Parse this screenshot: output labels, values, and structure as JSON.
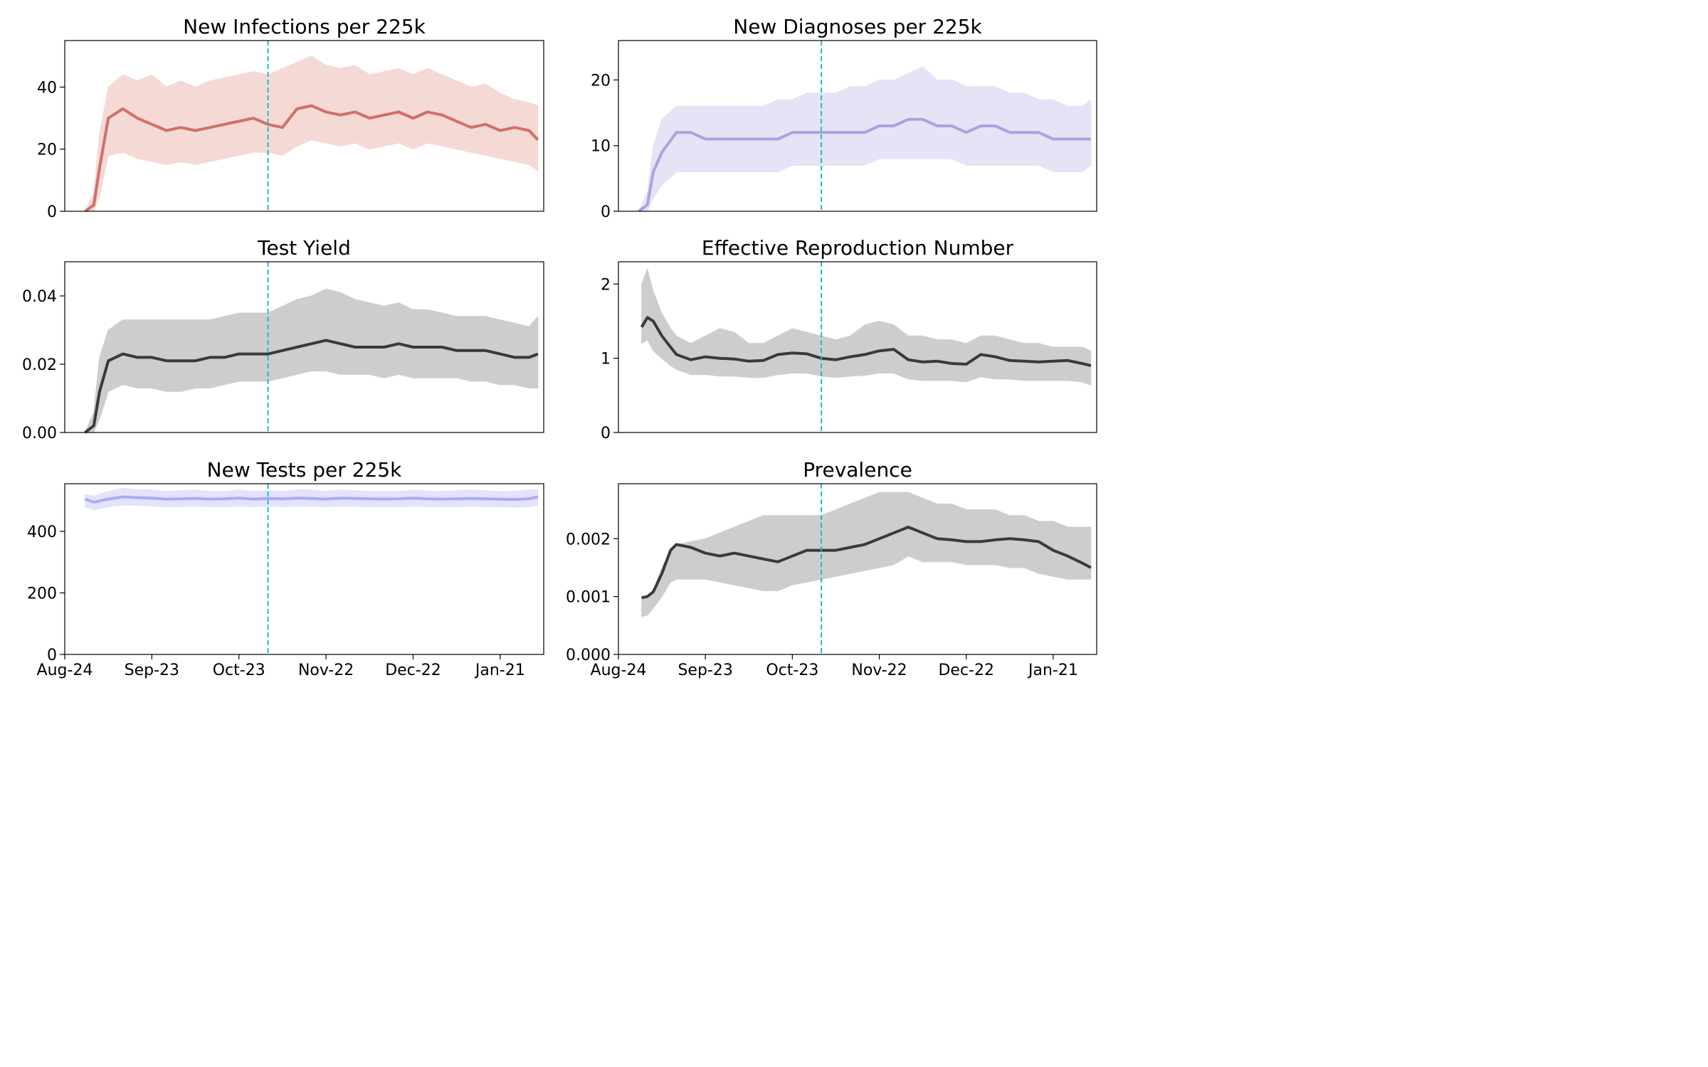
{
  "x_ticks": [
    "Aug-24",
    "Sep-23",
    "Oct-23",
    "Nov-22",
    "Dec-22",
    "Jan-21"
  ],
  "intervention_line_color": "#17becf",
  "chart_data": [
    {
      "type": "line",
      "title": "New Infections per 225k",
      "xlabel": "",
      "ylabel": "",
      "color": "#d07068",
      "band_color": "#f3d5d1",
      "ylim": [
        0,
        55
      ],
      "yticks": [
        "0",
        "20",
        "40"
      ],
      "x_day_range": [
        0,
        165
      ],
      "intervention_day": 70,
      "series": [
        {
          "x": [
            7,
            10,
            12,
            15,
            20,
            25,
            30,
            35,
            40,
            45,
            50,
            55,
            60,
            65,
            70,
            75,
            80,
            85,
            90,
            95,
            100,
            105,
            110,
            115,
            120,
            125,
            130,
            135,
            140,
            145,
            150,
            155,
            160,
            163
          ],
          "median": [
            0,
            2,
            14,
            30,
            33,
            30,
            28,
            26,
            27,
            26,
            27,
            28,
            29,
            30,
            28,
            27,
            33,
            34,
            32,
            31,
            32,
            30,
            31,
            32,
            30,
            32,
            31,
            29,
            27,
            28,
            26,
            27,
            26,
            23
          ],
          "upper": [
            0,
            6,
            25,
            40,
            44,
            42,
            44,
            40,
            42,
            40,
            42,
            43,
            44,
            45,
            44,
            46,
            48,
            50,
            47,
            46,
            47,
            44,
            45,
            46,
            44,
            46,
            44,
            42,
            40,
            41,
            38,
            36,
            35,
            34
          ],
          "lower": [
            0,
            0,
            5,
            18,
            19,
            17,
            16,
            15,
            16,
            15,
            16,
            17,
            18,
            19,
            19,
            18,
            21,
            23,
            22,
            21,
            22,
            20,
            21,
            22,
            20,
            22,
            21,
            20,
            19,
            18,
            17,
            16,
            15,
            13
          ]
        }
      ]
    },
    {
      "type": "line",
      "title": "New Diagnoses per 225k",
      "xlabel": "",
      "ylabel": "",
      "color": "#a9a4de",
      "band_color": "#e3e1f5",
      "ylim": [
        0,
        26
      ],
      "yticks": [
        "0",
        "10",
        "20"
      ],
      "x_day_range": [
        0,
        165
      ],
      "intervention_day": 70,
      "series": [
        {
          "x": [
            7,
            10,
            12,
            15,
            20,
            25,
            30,
            35,
            40,
            45,
            50,
            55,
            60,
            65,
            70,
            75,
            80,
            85,
            90,
            95,
            100,
            105,
            110,
            115,
            120,
            125,
            130,
            135,
            140,
            145,
            150,
            155,
            160,
            163
          ],
          "median": [
            0,
            1,
            6,
            9,
            12,
            12,
            11,
            11,
            11,
            11,
            11,
            11,
            12,
            12,
            12,
            12,
            12,
            12,
            13,
            13,
            14,
            14,
            13,
            13,
            12,
            13,
            13,
            12,
            12,
            12,
            11,
            11,
            11,
            11
          ],
          "upper": [
            0,
            3,
            10,
            14,
            16,
            16,
            16,
            16,
            16,
            16,
            16,
            17,
            17,
            18,
            18,
            18,
            19,
            19,
            20,
            20,
            21,
            22,
            20,
            20,
            19,
            19,
            19,
            18,
            18,
            17,
            17,
            16,
            16,
            17
          ],
          "lower": [
            0,
            0,
            2,
            4,
            6,
            6,
            6,
            6,
            6,
            6,
            6,
            6,
            7,
            7,
            7,
            7,
            7,
            7,
            8,
            8,
            8,
            8,
            8,
            8,
            7,
            7,
            7,
            7,
            7,
            7,
            6,
            6,
            6,
            7
          ]
        }
      ]
    },
    {
      "type": "line",
      "title": "Test Yield",
      "xlabel": "",
      "ylabel": "",
      "color": "#3a3a3a",
      "band_color": "#c8c8c8",
      "ylim": [
        0,
        0.05
      ],
      "yticks": [
        "0.00",
        "0.02",
        "0.04"
      ],
      "x_day_range": [
        0,
        165
      ],
      "intervention_day": 70,
      "series": [
        {
          "x": [
            7,
            10,
            12,
            15,
            20,
            25,
            30,
            35,
            40,
            45,
            50,
            55,
            60,
            65,
            70,
            75,
            80,
            85,
            90,
            95,
            100,
            105,
            110,
            115,
            120,
            125,
            130,
            135,
            140,
            145,
            150,
            155,
            160,
            163
          ],
          "median": [
            0,
            0.002,
            0.012,
            0.021,
            0.023,
            0.022,
            0.022,
            0.021,
            0.021,
            0.021,
            0.022,
            0.022,
            0.023,
            0.023,
            0.023,
            0.024,
            0.025,
            0.026,
            0.027,
            0.026,
            0.025,
            0.025,
            0.025,
            0.026,
            0.025,
            0.025,
            0.025,
            0.024,
            0.024,
            0.024,
            0.023,
            0.022,
            0.022,
            0.023
          ],
          "upper": [
            0,
            0.006,
            0.022,
            0.03,
            0.033,
            0.033,
            0.033,
            0.033,
            0.033,
            0.033,
            0.033,
            0.034,
            0.035,
            0.035,
            0.035,
            0.037,
            0.039,
            0.04,
            0.042,
            0.041,
            0.039,
            0.038,
            0.037,
            0.038,
            0.036,
            0.036,
            0.035,
            0.034,
            0.034,
            0.034,
            0.033,
            0.032,
            0.031,
            0.034
          ],
          "lower": [
            0,
            0,
            0.004,
            0.012,
            0.014,
            0.013,
            0.013,
            0.012,
            0.012,
            0.013,
            0.013,
            0.014,
            0.015,
            0.015,
            0.015,
            0.016,
            0.017,
            0.018,
            0.018,
            0.017,
            0.017,
            0.017,
            0.016,
            0.017,
            0.016,
            0.016,
            0.016,
            0.016,
            0.015,
            0.015,
            0.014,
            0.014,
            0.013,
            0.013
          ]
        }
      ]
    },
    {
      "type": "line",
      "title": "Effective Reproduction Number",
      "xlabel": "",
      "ylabel": "",
      "color": "#3a3a3a",
      "band_color": "#c8c8c8",
      "ylim": [
        0,
        2.3
      ],
      "yticks": [
        "0",
        "1",
        "2"
      ],
      "x_day_range": [
        0,
        165
      ],
      "intervention_day": 70,
      "series": [
        {
          "x": [
            8,
            10,
            12,
            15,
            18,
            20,
            25,
            30,
            35,
            40,
            45,
            50,
            55,
            60,
            65,
            70,
            75,
            80,
            85,
            90,
            95,
            100,
            105,
            110,
            115,
            120,
            125,
            130,
            135,
            140,
            145,
            150,
            155,
            160,
            163
          ],
          "median": [
            1.42,
            1.55,
            1.5,
            1.3,
            1.15,
            1.05,
            0.98,
            1.02,
            1.0,
            0.99,
            0.96,
            0.97,
            1.05,
            1.07,
            1.06,
            1.0,
            0.98,
            1.02,
            1.05,
            1.1,
            1.12,
            0.98,
            0.95,
            0.96,
            0.93,
            0.92,
            1.05,
            1.02,
            0.97,
            0.96,
            0.95,
            0.96,
            0.97,
            0.93,
            0.9
          ],
          "upper": [
            2.0,
            2.2,
            1.9,
            1.6,
            1.4,
            1.3,
            1.2,
            1.3,
            1.4,
            1.35,
            1.2,
            1.2,
            1.3,
            1.4,
            1.35,
            1.3,
            1.25,
            1.3,
            1.45,
            1.5,
            1.45,
            1.3,
            1.3,
            1.25,
            1.25,
            1.2,
            1.3,
            1.3,
            1.25,
            1.2,
            1.2,
            1.15,
            1.15,
            1.15,
            1.1
          ],
          "lower": [
            1.2,
            1.25,
            1.1,
            1.0,
            0.9,
            0.85,
            0.78,
            0.78,
            0.76,
            0.76,
            0.74,
            0.74,
            0.78,
            0.8,
            0.8,
            0.76,
            0.74,
            0.76,
            0.77,
            0.8,
            0.8,
            0.72,
            0.7,
            0.7,
            0.7,
            0.68,
            0.75,
            0.72,
            0.72,
            0.7,
            0.7,
            0.7,
            0.7,
            0.68,
            0.64
          ]
        }
      ]
    },
    {
      "type": "line",
      "title": "New Tests per 225k",
      "xlabel": "",
      "ylabel": "",
      "color": "#aeaaf5",
      "band_color": "#e0e0fb",
      "ylim": [
        0,
        555
      ],
      "yticks": [
        "0",
        "200",
        "400"
      ],
      "x_day_range": [
        0,
        165
      ],
      "intervention_day": 70,
      "series": [
        {
          "x": [
            7,
            10,
            15,
            20,
            25,
            30,
            35,
            40,
            45,
            50,
            55,
            60,
            65,
            70,
            75,
            80,
            85,
            90,
            95,
            100,
            105,
            110,
            115,
            120,
            125,
            130,
            135,
            140,
            145,
            150,
            155,
            160,
            163
          ],
          "median": [
            505,
            495,
            505,
            512,
            510,
            508,
            505,
            506,
            507,
            505,
            506,
            508,
            505,
            507,
            506,
            508,
            507,
            505,
            508,
            507,
            506,
            505,
            506,
            508,
            506,
            505,
            506,
            507,
            506,
            505,
            504,
            506,
            512
          ],
          "upper": [
            520,
            515,
            530,
            540,
            535,
            535,
            530,
            532,
            535,
            530,
            530,
            535,
            530,
            532,
            530,
            535,
            535,
            530,
            535,
            532,
            530,
            530,
            530,
            535,
            530,
            530,
            532,
            535,
            532,
            530,
            530,
            535,
            535
          ],
          "lower": [
            480,
            470,
            480,
            485,
            485,
            482,
            480,
            480,
            482,
            480,
            480,
            482,
            480,
            482,
            480,
            482,
            482,
            480,
            482,
            482,
            480,
            480,
            480,
            482,
            480,
            480,
            480,
            482,
            480,
            480,
            478,
            480,
            485
          ]
        }
      ]
    },
    {
      "type": "line",
      "title": "Prevalence",
      "xlabel": "",
      "ylabel": "",
      "color": "#3a3a3a",
      "band_color": "#c8c8c8",
      "ylim": [
        0,
        0.00295
      ],
      "yticks": [
        "0.000",
        "0.001",
        "0.002"
      ],
      "x_day_range": [
        0,
        165
      ],
      "intervention_day": 70,
      "series": [
        {
          "x": [
            8,
            10,
            12,
            15,
            18,
            20,
            25,
            30,
            35,
            40,
            45,
            50,
            55,
            60,
            65,
            70,
            75,
            80,
            85,
            90,
            95,
            100,
            105,
            110,
            115,
            120,
            125,
            130,
            135,
            140,
            145,
            150,
            155,
            160,
            163
          ],
          "median": [
            0.00098,
            0.001,
            0.00108,
            0.0014,
            0.0018,
            0.0019,
            0.00185,
            0.00175,
            0.0017,
            0.00175,
            0.0017,
            0.00165,
            0.0016,
            0.0017,
            0.0018,
            0.0018,
            0.0018,
            0.00185,
            0.0019,
            0.002,
            0.0021,
            0.0022,
            0.0021,
            0.002,
            0.00198,
            0.00195,
            0.00195,
            0.00198,
            0.002,
            0.00198,
            0.00195,
            0.0018,
            0.0017,
            0.00158,
            0.0015
          ],
          "upper": [
            0.00098,
            0.001,
            0.0011,
            0.0015,
            0.0018,
            0.0019,
            0.00195,
            0.002,
            0.0021,
            0.0022,
            0.0023,
            0.0024,
            0.0024,
            0.0024,
            0.0024,
            0.0024,
            0.0025,
            0.0026,
            0.0027,
            0.0028,
            0.0028,
            0.0028,
            0.0027,
            0.0026,
            0.0026,
            0.0025,
            0.0025,
            0.0025,
            0.0024,
            0.0024,
            0.0023,
            0.0023,
            0.0022,
            0.0022,
            0.0022
          ],
          "lower": [
            0.00065,
            0.00068,
            0.0008,
            0.001,
            0.00125,
            0.0013,
            0.0013,
            0.0013,
            0.00125,
            0.0012,
            0.00115,
            0.0011,
            0.0011,
            0.0012,
            0.00125,
            0.0013,
            0.00135,
            0.0014,
            0.00145,
            0.0015,
            0.00155,
            0.0017,
            0.0016,
            0.0016,
            0.0016,
            0.00155,
            0.00155,
            0.00155,
            0.0015,
            0.0015,
            0.0014,
            0.00135,
            0.0013,
            0.0013,
            0.0013
          ]
        }
      ]
    }
  ]
}
